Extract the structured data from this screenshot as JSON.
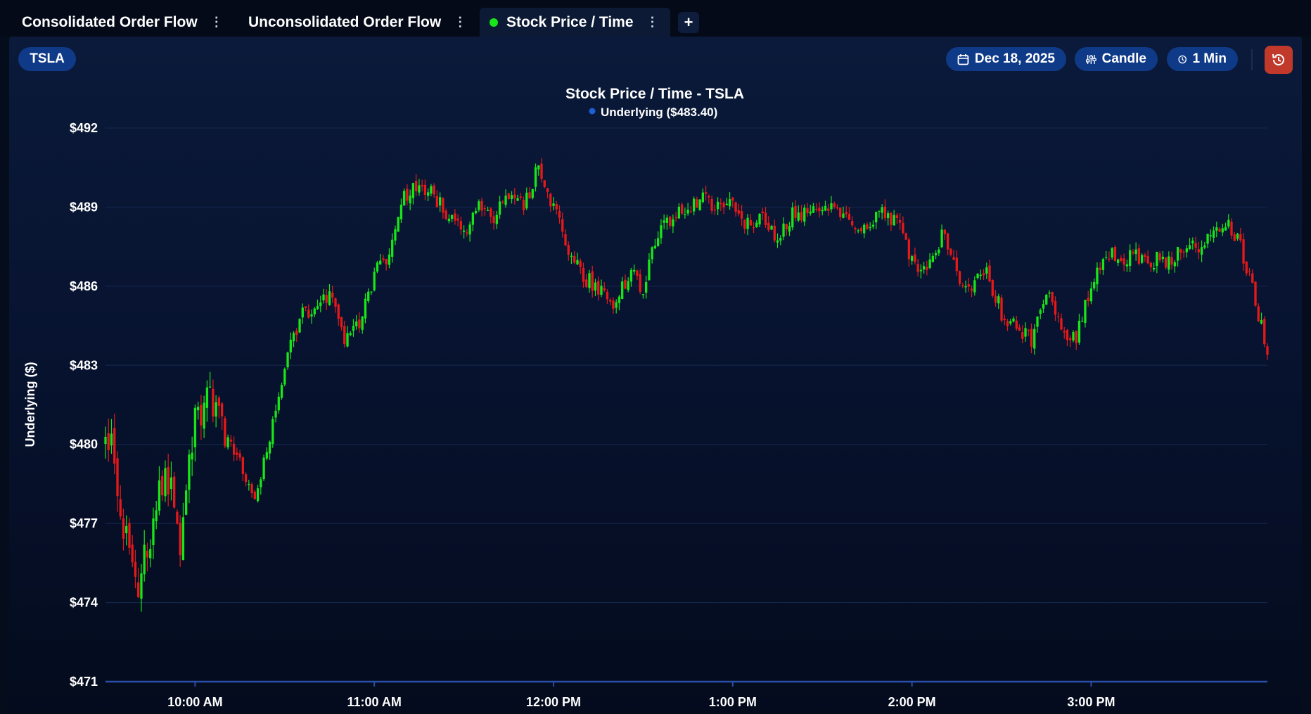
{
  "tabs": [
    {
      "label": "Consolidated Order Flow",
      "active": false
    },
    {
      "label": "Unconsolidated Order Flow",
      "active": false
    },
    {
      "label": "Stock Price / Time",
      "active": true,
      "status_color": "#19e619"
    }
  ],
  "add_tab_label": "+",
  "tab_menu_glyph": "⋮",
  "toolbar": {
    "ticker": "TSLA",
    "date": "Dec 18, 2025",
    "chart_style": "Candle",
    "interval": "1 Min",
    "date_icon": "calendar-icon",
    "style_icon": "sliders-icon",
    "interval_icon": "clock-icon",
    "reset_icon": "history-reset-icon"
  },
  "colors": {
    "up": "#19e619",
    "down": "#e61919",
    "accent": "#0f3a87",
    "reset": "#c0392b",
    "axis": "#2a4fa8",
    "grid": "#13254a"
  },
  "chart_data": {
    "type": "candlestick",
    "title": "Stock Price / Time - TSLA",
    "legend": {
      "label": "Underlying ($483.40)",
      "placement": "top-center"
    },
    "ylabel": "Underlying ($)",
    "xlabel": "",
    "ylim": [
      471,
      492
    ],
    "yticks": [
      492,
      489,
      486,
      483,
      480,
      477,
      474,
      471
    ],
    "ytick_labels": [
      "$492",
      "$489",
      "$486",
      "$483",
      "$480",
      "$477",
      "$474",
      "$471"
    ],
    "xlim": [
      "09:30",
      "15:59"
    ],
    "xticks": [
      "10:00",
      "11:00",
      "12:00",
      "13:00",
      "14:00",
      "15:00"
    ],
    "xtick_labels": [
      "10:00 AM",
      "11:00 AM",
      "12:00 PM",
      "1:00 PM",
      "2:00 PM",
      "3:00 PM"
    ],
    "grid": true,
    "series": [
      {
        "interval": "1 Min",
        "close_path": [
          [
            "09:30",
            480.2
          ],
          [
            "09:32",
            480.8
          ],
          [
            "09:35",
            477.5
          ],
          [
            "09:40",
            474.5
          ],
          [
            "09:45",
            476.5
          ],
          [
            "09:50",
            479.3
          ],
          [
            "09:55",
            476.5
          ],
          [
            "10:00",
            481.2
          ],
          [
            "10:05",
            481.8
          ],
          [
            "10:10",
            480.2
          ],
          [
            "10:15",
            479.3
          ],
          [
            "10:20",
            478.0
          ],
          [
            "10:25",
            480.3
          ],
          [
            "10:30",
            483.0
          ],
          [
            "10:35",
            484.8
          ],
          [
            "10:40",
            485.2
          ],
          [
            "10:45",
            485.8
          ],
          [
            "10:50",
            484.0
          ],
          [
            "10:55",
            484.5
          ],
          [
            "11:00",
            486.5
          ],
          [
            "11:05",
            487.0
          ],
          [
            "11:10",
            489.5
          ],
          [
            "11:15",
            489.8
          ],
          [
            "11:20",
            489.5
          ],
          [
            "11:25",
            488.5
          ],
          [
            "11:30",
            488.0
          ],
          [
            "11:35",
            489.0
          ],
          [
            "11:40",
            488.5
          ],
          [
            "11:45",
            489.5
          ],
          [
            "11:50",
            489.0
          ],
          [
            "11:55",
            490.5
          ],
          [
            "12:00",
            489.0
          ],
          [
            "12:05",
            487.5
          ],
          [
            "12:10",
            486.3
          ],
          [
            "12:15",
            486.0
          ],
          [
            "12:20",
            485.0
          ],
          [
            "12:25",
            486.5
          ],
          [
            "12:30",
            486.0
          ],
          [
            "12:35",
            488.0
          ],
          [
            "12:40",
            488.5
          ],
          [
            "12:45",
            489.0
          ],
          [
            "12:50",
            489.3
          ],
          [
            "12:55",
            489.0
          ],
          [
            "13:00",
            489.5
          ],
          [
            "13:03",
            488.3
          ],
          [
            "13:10",
            488.5
          ],
          [
            "13:15",
            487.8
          ],
          [
            "13:20",
            488.8
          ],
          [
            "13:25",
            488.7
          ],
          [
            "13:30",
            488.8
          ],
          [
            "13:35",
            489.0
          ],
          [
            "13:40",
            488.5
          ],
          [
            "13:45",
            488.2
          ],
          [
            "13:50",
            488.8
          ],
          [
            "13:55",
            488.5
          ],
          [
            "14:00",
            487.0
          ],
          [
            "14:05",
            486.5
          ],
          [
            "14:10",
            488.0
          ],
          [
            "14:15",
            486.5
          ],
          [
            "14:20",
            486.0
          ],
          [
            "14:25",
            486.5
          ],
          [
            "14:30",
            485.0
          ],
          [
            "14:35",
            484.5
          ],
          [
            "14:40",
            484.0
          ],
          [
            "14:45",
            485.8
          ],
          [
            "14:50",
            484.3
          ],
          [
            "14:55",
            484.0
          ],
          [
            "15:00",
            486.0
          ],
          [
            "15:05",
            487.3
          ],
          [
            "15:10",
            487.0
          ],
          [
            "15:15",
            487.2
          ],
          [
            "15:20",
            487.0
          ],
          [
            "15:25",
            487.0
          ],
          [
            "15:30",
            487.3
          ],
          [
            "15:35",
            487.5
          ],
          [
            "15:40",
            488.0
          ],
          [
            "15:45",
            488.5
          ],
          [
            "15:50",
            487.5
          ],
          [
            "15:55",
            485.5
          ],
          [
            "15:59",
            483.4
          ]
        ]
      }
    ]
  }
}
